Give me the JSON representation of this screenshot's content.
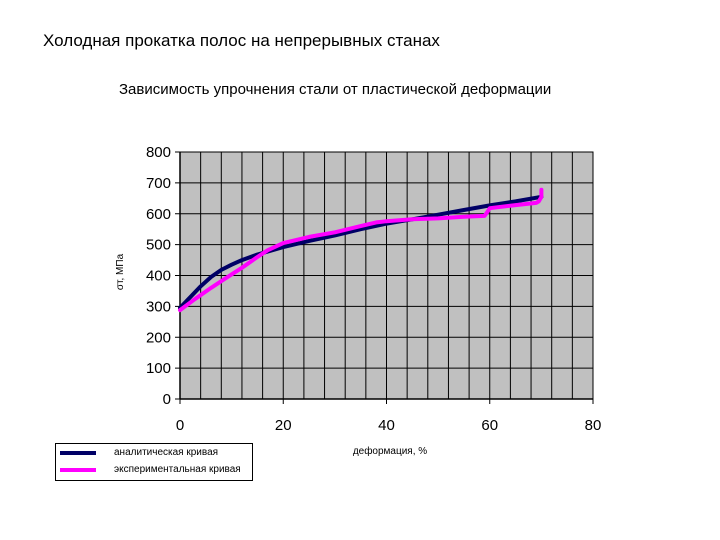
{
  "header": {
    "title": "Холодная прокатка полос на непрерывных станах"
  },
  "chart_data": {
    "type": "line",
    "title": "Зависимость упрочнения стали от пластической деформации",
    "xlabel": "деформация, %",
    "ylabel": "σт, МПа",
    "xlim": [
      0,
      80
    ],
    "ylim": [
      0,
      800
    ],
    "x_ticks": [
      0,
      20,
      40,
      60,
      80
    ],
    "y_ticks": [
      0,
      100,
      200,
      300,
      400,
      500,
      600,
      700,
      800
    ],
    "grid": true,
    "plot_background": "#c0c0c0",
    "legend_position": "bottom-left",
    "series": [
      {
        "name": "аналитическая кривая",
        "color": "#000066",
        "x": [
          0,
          2,
          4,
          6,
          8,
          10,
          12,
          15,
          20,
          25,
          30,
          35,
          40,
          45,
          50,
          55,
          60,
          65,
          70
        ],
        "y": [
          295,
          330,
          365,
          395,
          418,
          435,
          450,
          468,
          492,
          512,
          530,
          550,
          568,
          582,
          597,
          612,
          627,
          640,
          655
        ]
      },
      {
        "name": "экспериментальная кривая",
        "color": "#ff00ff",
        "x": [
          0,
          3,
          6,
          9,
          12,
          15,
          17,
          20,
          25,
          30,
          35,
          38,
          40,
          45,
          50,
          55,
          59,
          59.5,
          60,
          65,
          69,
          69.5,
          70,
          70
        ],
        "y": [
          288,
          325,
          360,
          393,
          425,
          460,
          482,
          505,
          525,
          540,
          560,
          572,
          576,
          582,
          585,
          590,
          593,
          605,
          618,
          628,
          635,
          640,
          655,
          678
        ]
      }
    ]
  }
}
